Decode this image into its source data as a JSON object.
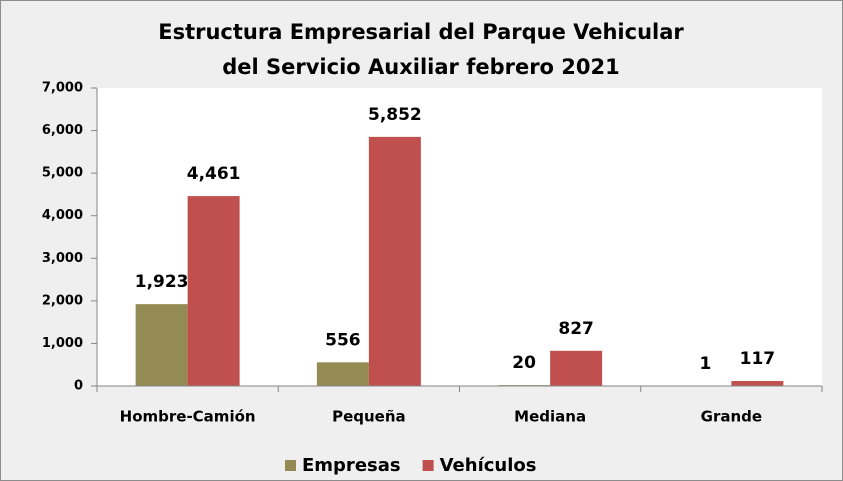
{
  "chart_data": {
    "type": "bar",
    "title": [
      "Estructura Empresarial del Parque Vehicular",
      "del Servicio Auxiliar febrero 2021"
    ],
    "categories": [
      "Hombre-Camión",
      "Pequeña",
      "Mediana",
      "Grande"
    ],
    "series": [
      {
        "name": "Empresas",
        "color": "#948a54",
        "values": [
          1923,
          556,
          20,
          1
        ],
        "value_labels": [
          "1,923",
          "556",
          "20",
          "1"
        ]
      },
      {
        "name": "Vehículos",
        "color": "#c0504d",
        "values": [
          4461,
          5852,
          827,
          117
        ],
        "value_labels": [
          "4,461",
          "5,852",
          "827",
          "117"
        ]
      }
    ],
    "ylim": [
      0,
      7000
    ],
    "yticks": [
      0,
      {
        "value": 1000,
        "label": "1,000"
      },
      {
        "value": 2000,
        "label": "2,000"
      },
      {
        "value": 3000,
        "label": "3,000"
      },
      {
        "value": 4000,
        "label": "4,000"
      },
      {
        "value": 5000,
        "label": "5,000"
      },
      {
        "value": 6000,
        "label": "6,000"
      },
      {
        "value": 7000,
        "label": "7,000"
      }
    ],
    "legend": "bottom"
  }
}
